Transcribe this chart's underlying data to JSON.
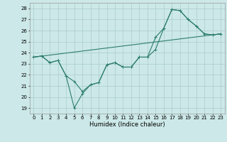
{
  "xlabel": "Humidex (Indice chaleur)",
  "bg_color": "#cce8e8",
  "grid_color": "#aacccc",
  "line_color": "#2d7d6e",
  "xlim": [
    -0.5,
    23.5
  ],
  "ylim": [
    18.5,
    28.5
  ],
  "yticks": [
    19,
    20,
    21,
    22,
    23,
    24,
    25,
    26,
    27,
    28
  ],
  "xticks": [
    0,
    1,
    2,
    3,
    4,
    5,
    6,
    7,
    8,
    9,
    10,
    11,
    12,
    13,
    14,
    15,
    16,
    17,
    18,
    19,
    20,
    21,
    22,
    23
  ],
  "line1_y": [
    23.6,
    23.7,
    23.1,
    23.3,
    21.9,
    21.4,
    20.5,
    21.1,
    21.3,
    22.9,
    23.1,
    22.7,
    22.7,
    23.6,
    23.6,
    24.3,
    26.2,
    27.9,
    27.8,
    27.0,
    26.4,
    25.7,
    25.6,
    25.7
  ],
  "line2_y": [
    23.6,
    23.7,
    23.1,
    23.3,
    21.9,
    19.0,
    20.3,
    21.1,
    21.3,
    22.9,
    23.1,
    22.7,
    22.7,
    23.6,
    23.6,
    25.4,
    26.2,
    27.9,
    27.8,
    27.0,
    26.4,
    25.7,
    25.6,
    25.7
  ],
  "line3_x": [
    0,
    23
  ],
  "line3_y": [
    23.6,
    25.7
  ],
  "xlabel_fontsize": 6,
  "tick_fontsize": 5
}
